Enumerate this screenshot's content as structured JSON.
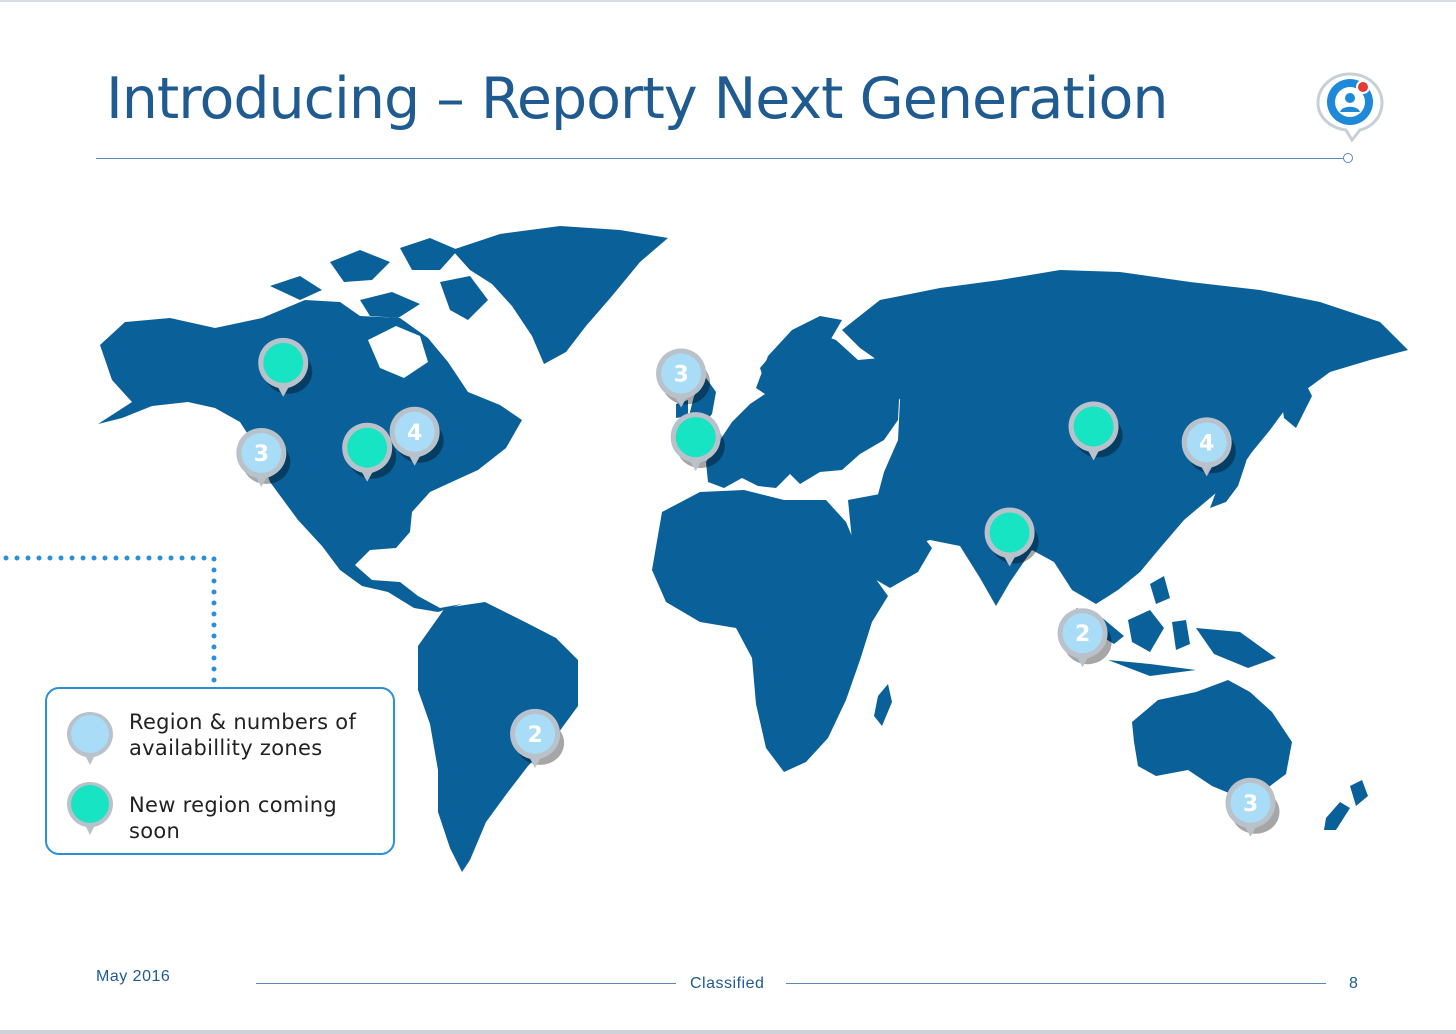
{
  "slide": {
    "title": "Introducing – Reporty Next Generation",
    "footer_date": "May 2016",
    "footer_classification": "Classified",
    "page_number": "8"
  },
  "colors": {
    "land": "#0a6098",
    "land_light": "#3f7fb5",
    "existing_region": "#a9dcf7",
    "new_region": "#17e4c3",
    "pin_border": "#b9c2ca",
    "accent": "#2b8fd8",
    "title": "#1f5a91"
  },
  "legend": {
    "existing_label": "Region & numbers of\navailabillity zones",
    "new_label": "New region coming soon"
  },
  "regions": [
    {
      "id": "canada-west",
      "type": "new",
      "lon": -115,
      "lat": 57
    },
    {
      "id": "us-west",
      "type": "existing",
      "zones": "3",
      "lon": -121,
      "lat": 40
    },
    {
      "id": "us-central",
      "type": "new",
      "lon": -92,
      "lat": 41
    },
    {
      "id": "us-east",
      "type": "existing",
      "zones": "4",
      "lon": -79,
      "lat": 44
    },
    {
      "id": "south-america",
      "type": "existing",
      "zones": "2",
      "lon": -46,
      "lat": -13
    },
    {
      "id": "ireland-uk",
      "type": "existing",
      "zones": "3",
      "lon": -6,
      "lat": 55
    },
    {
      "id": "western-europe",
      "type": "new",
      "lon": -2,
      "lat": 43
    },
    {
      "id": "china",
      "type": "new",
      "lon": 107,
      "lat": 45
    },
    {
      "id": "japan",
      "type": "existing",
      "zones": "4",
      "lon": 138,
      "lat": 42
    },
    {
      "id": "india",
      "type": "new",
      "lon": 84,
      "lat": 25
    },
    {
      "id": "singapore",
      "type": "existing",
      "zones": "2",
      "lon": 104,
      "lat": 6
    },
    {
      "id": "australia",
      "type": "existing",
      "zones": "3",
      "lon": 150,
      "lat": -26
    }
  ]
}
